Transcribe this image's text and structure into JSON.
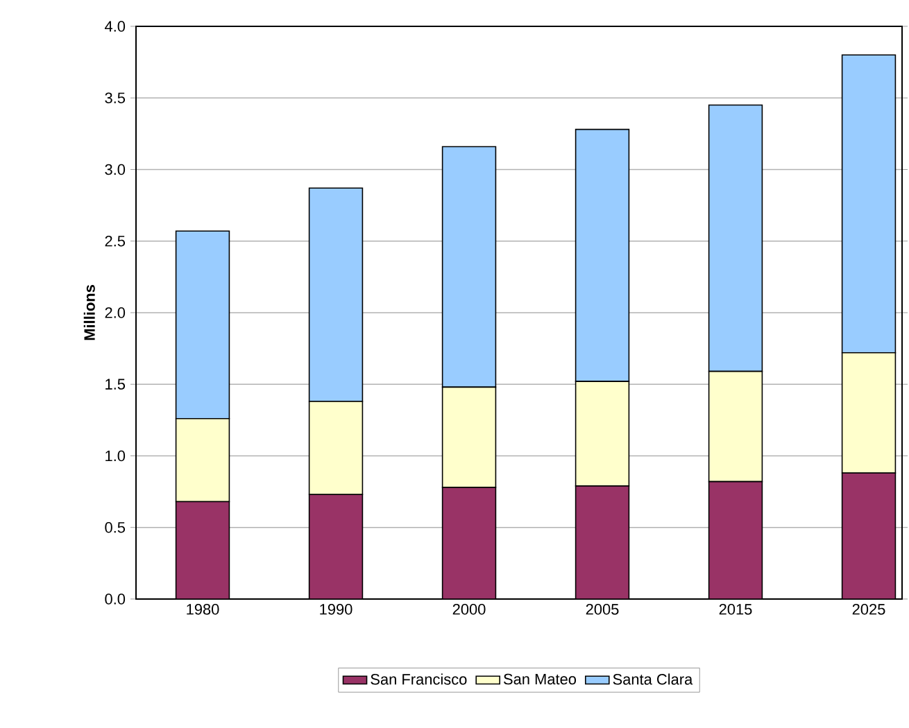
{
  "chart_data": {
    "type": "bar",
    "stacked": true,
    "ylabel": "Millions",
    "categories": [
      "1980",
      "1990",
      "2000",
      "2005",
      "2015",
      "2025"
    ],
    "series": [
      {
        "name": "San Francisco",
        "color": "#993366",
        "values": [
          0.68,
          0.73,
          0.78,
          0.79,
          0.82,
          0.88
        ]
      },
      {
        "name": "San Mateo",
        "color": "#ffffcc",
        "values": [
          0.58,
          0.65,
          0.7,
          0.73,
          0.77,
          0.84
        ]
      },
      {
        "name": "Santa Clara",
        "color": "#99ccff",
        "values": [
          1.31,
          1.49,
          1.68,
          1.76,
          1.86,
          2.08
        ]
      }
    ],
    "ylim": [
      0,
      4
    ],
    "yticks": [
      {
        "value": 0,
        "label": "0.0"
      },
      {
        "value": 0.5,
        "label": "0.5"
      },
      {
        "value": 1,
        "label": "1.0"
      },
      {
        "value": 1.5,
        "label": "1.5"
      },
      {
        "value": 2,
        "label": "2.0"
      },
      {
        "value": 2.5,
        "label": "2.5"
      },
      {
        "value": 3,
        "label": "3.0"
      },
      {
        "value": 3.5,
        "label": "3.5"
      },
      {
        "value": 4,
        "label": "4.0"
      }
    ],
    "grid": "y",
    "legend": "bottom"
  }
}
